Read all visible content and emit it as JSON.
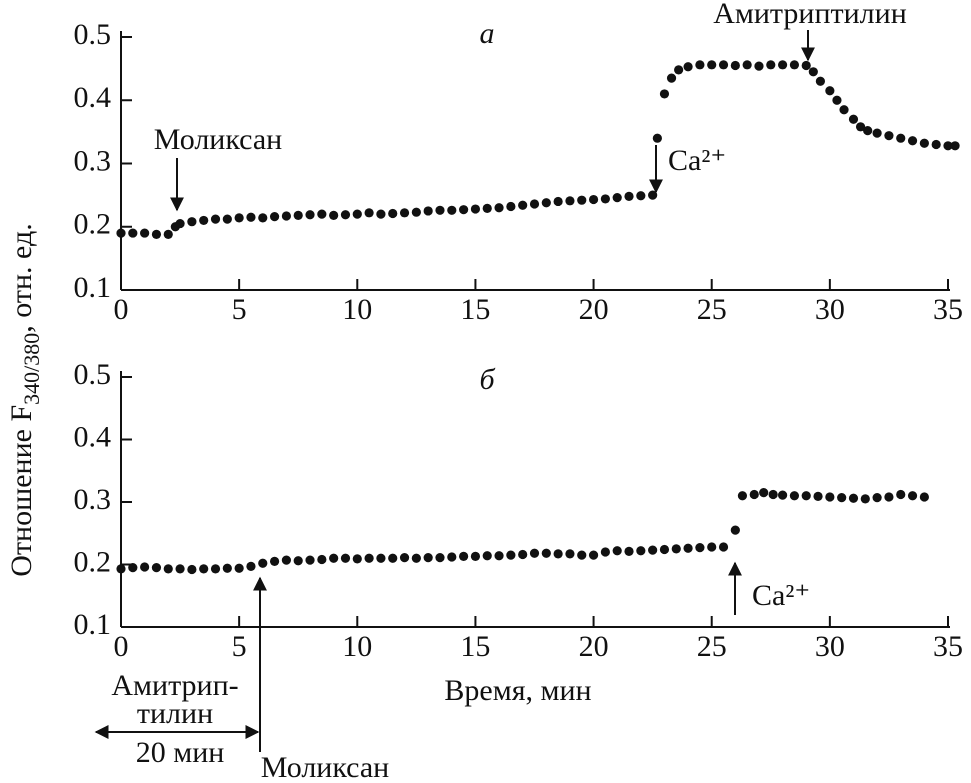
{
  "y_label": {
    "main": "Отношение F",
    "sub": "340/380",
    "tail": ", отн. ед."
  },
  "chart_data": [
    {
      "type": "scatter",
      "label": "а",
      "color": "#111111",
      "annotations": [
        "Моликсан",
        "Ca²⁺",
        "Амитриптилин"
      ],
      "xlim": [
        0,
        35
      ],
      "xticks": [
        0,
        5,
        10,
        15,
        20,
        25,
        30,
        35
      ],
      "ylim": [
        0.1,
        0.5
      ],
      "yticks": [
        0.1,
        0.2,
        0.3,
        0.4,
        0.5
      ],
      "x": [
        0,
        0.5,
        1,
        1.5,
        2,
        2.3,
        2.5,
        3,
        3.5,
        4,
        4.5,
        5,
        5.5,
        6,
        6.5,
        7,
        7.5,
        8,
        8.5,
        9,
        9.5,
        10,
        10.5,
        11,
        11.5,
        12,
        12.5,
        13,
        13.5,
        14,
        14.5,
        15,
        15.5,
        16,
        16.5,
        17,
        17.5,
        18,
        18.5,
        19,
        19.5,
        20,
        20.5,
        21,
        21.5,
        22,
        22.5,
        22.7,
        23,
        23.3,
        23.6,
        24,
        24.5,
        25,
        25.5,
        26,
        26.5,
        27,
        27.5,
        28,
        28.5,
        29,
        29.3,
        29.6,
        30,
        30.3,
        30.6,
        31,
        31.3,
        31.6,
        32,
        32.5,
        33,
        33.5,
        34,
        34.5,
        35,
        35.3
      ],
      "values": [
        0.19,
        0.19,
        0.19,
        0.188,
        0.188,
        0.2,
        0.205,
        0.208,
        0.21,
        0.212,
        0.212,
        0.214,
        0.215,
        0.214,
        0.216,
        0.217,
        0.218,
        0.219,
        0.22,
        0.218,
        0.219,
        0.22,
        0.222,
        0.22,
        0.221,
        0.222,
        0.223,
        0.225,
        0.226,
        0.226,
        0.227,
        0.228,
        0.229,
        0.23,
        0.232,
        0.234,
        0.236,
        0.238,
        0.24,
        0.241,
        0.242,
        0.243,
        0.244,
        0.246,
        0.248,
        0.249,
        0.25,
        0.34,
        0.41,
        0.435,
        0.448,
        0.453,
        0.456,
        0.456,
        0.456,
        0.455,
        0.456,
        0.454,
        0.456,
        0.456,
        0.456,
        0.455,
        0.445,
        0.43,
        0.415,
        0.4,
        0.385,
        0.37,
        0.358,
        0.352,
        0.348,
        0.344,
        0.34,
        0.336,
        0.332,
        0.33,
        0.328,
        0.328
      ]
    },
    {
      "type": "scatter",
      "label": "б",
      "color": "#111111",
      "x_label": "Время, мин",
      "annotations": [
        "Моликсан",
        "Ca²⁺",
        "Амитрип-",
        "тилин",
        "20 мин"
      ],
      "xlim": [
        0,
        35
      ],
      "xticks": [
        0,
        5,
        10,
        15,
        20,
        25,
        30,
        35
      ],
      "ylim": [
        0.1,
        0.5
      ],
      "yticks": [
        0.1,
        0.2,
        0.3,
        0.4,
        0.5
      ],
      "x": [
        0,
        0.5,
        1,
        1.5,
        2,
        2.5,
        3,
        3.5,
        4,
        4.5,
        5,
        5.5,
        6,
        6.5,
        7,
        7.5,
        8,
        8.5,
        9,
        9.5,
        10,
        10.5,
        11,
        11.5,
        12,
        12.5,
        13,
        13.5,
        14,
        14.5,
        15,
        15.5,
        16,
        16.5,
        17,
        17.5,
        18,
        18.5,
        19,
        19.5,
        20,
        20.5,
        21,
        21.5,
        22,
        22.5,
        23,
        23.5,
        24,
        24.5,
        25,
        25.5,
        26,
        26.3,
        26.8,
        27.2,
        27.6,
        28,
        28.5,
        29,
        29.5,
        30,
        30.5,
        31,
        31.5,
        32,
        32.5,
        33,
        33.5,
        34
      ],
      "values": [
        0.193,
        0.195,
        0.196,
        0.195,
        0.193,
        0.193,
        0.192,
        0.193,
        0.193,
        0.194,
        0.194,
        0.197,
        0.202,
        0.205,
        0.207,
        0.206,
        0.207,
        0.208,
        0.21,
        0.21,
        0.209,
        0.21,
        0.21,
        0.21,
        0.211,
        0.21,
        0.211,
        0.211,
        0.212,
        0.213,
        0.213,
        0.214,
        0.214,
        0.215,
        0.216,
        0.218,
        0.218,
        0.217,
        0.217,
        0.215,
        0.215,
        0.22,
        0.222,
        0.221,
        0.222,
        0.223,
        0.224,
        0.225,
        0.226,
        0.227,
        0.228,
        0.228,
        0.255,
        0.31,
        0.312,
        0.315,
        0.312,
        0.311,
        0.31,
        0.31,
        0.309,
        0.308,
        0.307,
        0.306,
        0.305,
        0.307,
        0.308,
        0.312,
        0.31,
        0.308
      ]
    }
  ]
}
